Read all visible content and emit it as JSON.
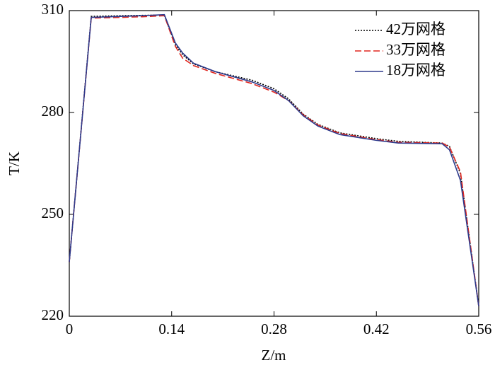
{
  "chart_data": {
    "type": "line",
    "x_label": "Z/m",
    "y_label": "T/K",
    "x": [
      0,
      0.03,
      0.07,
      0.1,
      0.13,
      0.145,
      0.155,
      0.17,
      0.2,
      0.25,
      0.28,
      0.3,
      0.32,
      0.34,
      0.37,
      0.42,
      0.45,
      0.51,
      0.52,
      0.535,
      0.56
    ],
    "series": [
      {
        "name": "42万网格",
        "color": "#000000",
        "linestyle": "dotted",
        "values": [
          236,
          308.3,
          308.5,
          308.6,
          308.7,
          300,
          297,
          294.3,
          292,
          289.5,
          287,
          284,
          279.5,
          276.5,
          274,
          272.3,
          271.5,
          271,
          270,
          262,
          223
        ]
      },
      {
        "name": "33万网格",
        "color": "#e0261f",
        "linestyle": "dashed",
        "values": [
          236,
          307.8,
          308,
          308.2,
          308.5,
          299.5,
          296,
          293.8,
          291.5,
          288.5,
          286,
          283.5,
          279.3,
          276.3,
          273.8,
          272,
          271.2,
          271,
          269.8,
          262.5,
          223
        ]
      },
      {
        "name": "18万网格",
        "color": "#2e3a8c",
        "linestyle": "solid",
        "values": [
          236,
          308,
          308.3,
          308.5,
          308.8,
          300.5,
          297.5,
          294.5,
          292,
          289,
          286.5,
          283.5,
          279,
          276,
          273.5,
          271.8,
          271,
          270.8,
          269,
          260,
          223
        ]
      }
    ],
    "xlim": [
      0,
      0.56
    ],
    "xticks": [
      0,
      0.14,
      0.28,
      0.42,
      0.56
    ],
    "ylim": [
      220,
      310
    ],
    "yticks": [
      220,
      250,
      280,
      310
    ],
    "grid": false,
    "legend": "upper right"
  }
}
